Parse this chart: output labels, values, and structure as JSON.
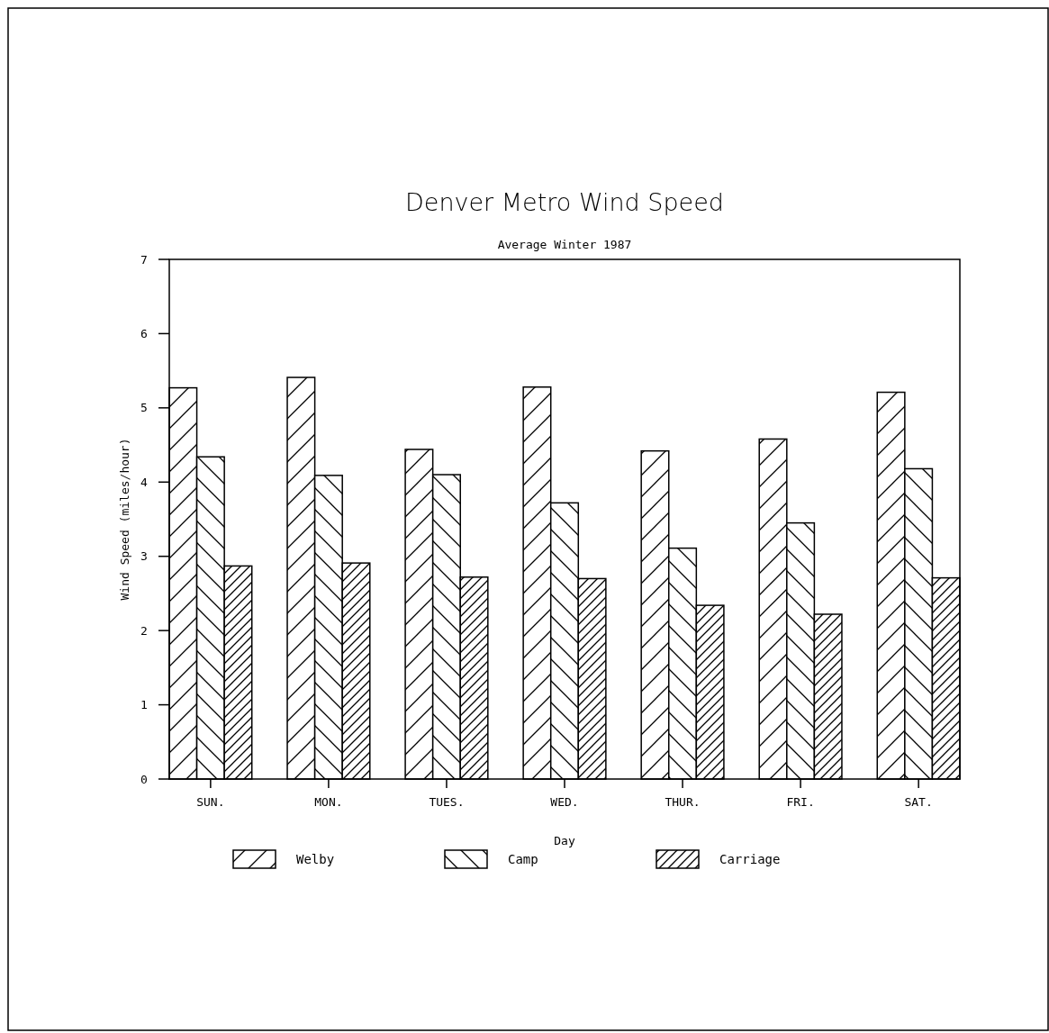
{
  "chart_data": {
    "type": "bar",
    "title": "Denver Metro Wind Speed",
    "subtitle": "Average Winter 1987",
    "xlabel": "Day",
    "ylabel": "Wind Speed (miles/hour)",
    "categories": [
      "SUN.",
      "MON.",
      "TUES.",
      "WED.",
      "THUR.",
      "FRI.",
      "SAT."
    ],
    "series": [
      {
        "name": "Welby",
        "color": "#000000",
        "values": [
          5.27,
          5.41,
          4.44,
          5.28,
          4.42,
          4.58,
          5.21
        ]
      },
      {
        "name": "Camp",
        "color": "#000000",
        "values": [
          4.34,
          4.09,
          4.1,
          3.72,
          3.11,
          3.45,
          4.18
        ]
      },
      {
        "name": "Carriage",
        "color": "#000000",
        "values": [
          2.87,
          2.91,
          2.72,
          2.7,
          2.34,
          2.22,
          2.71
        ]
      }
    ],
    "ylim": [
      0,
      7
    ],
    "yticks": [
      0,
      1,
      2,
      3,
      4,
      5,
      6,
      7
    ],
    "grid": false,
    "legend": "bottom"
  }
}
